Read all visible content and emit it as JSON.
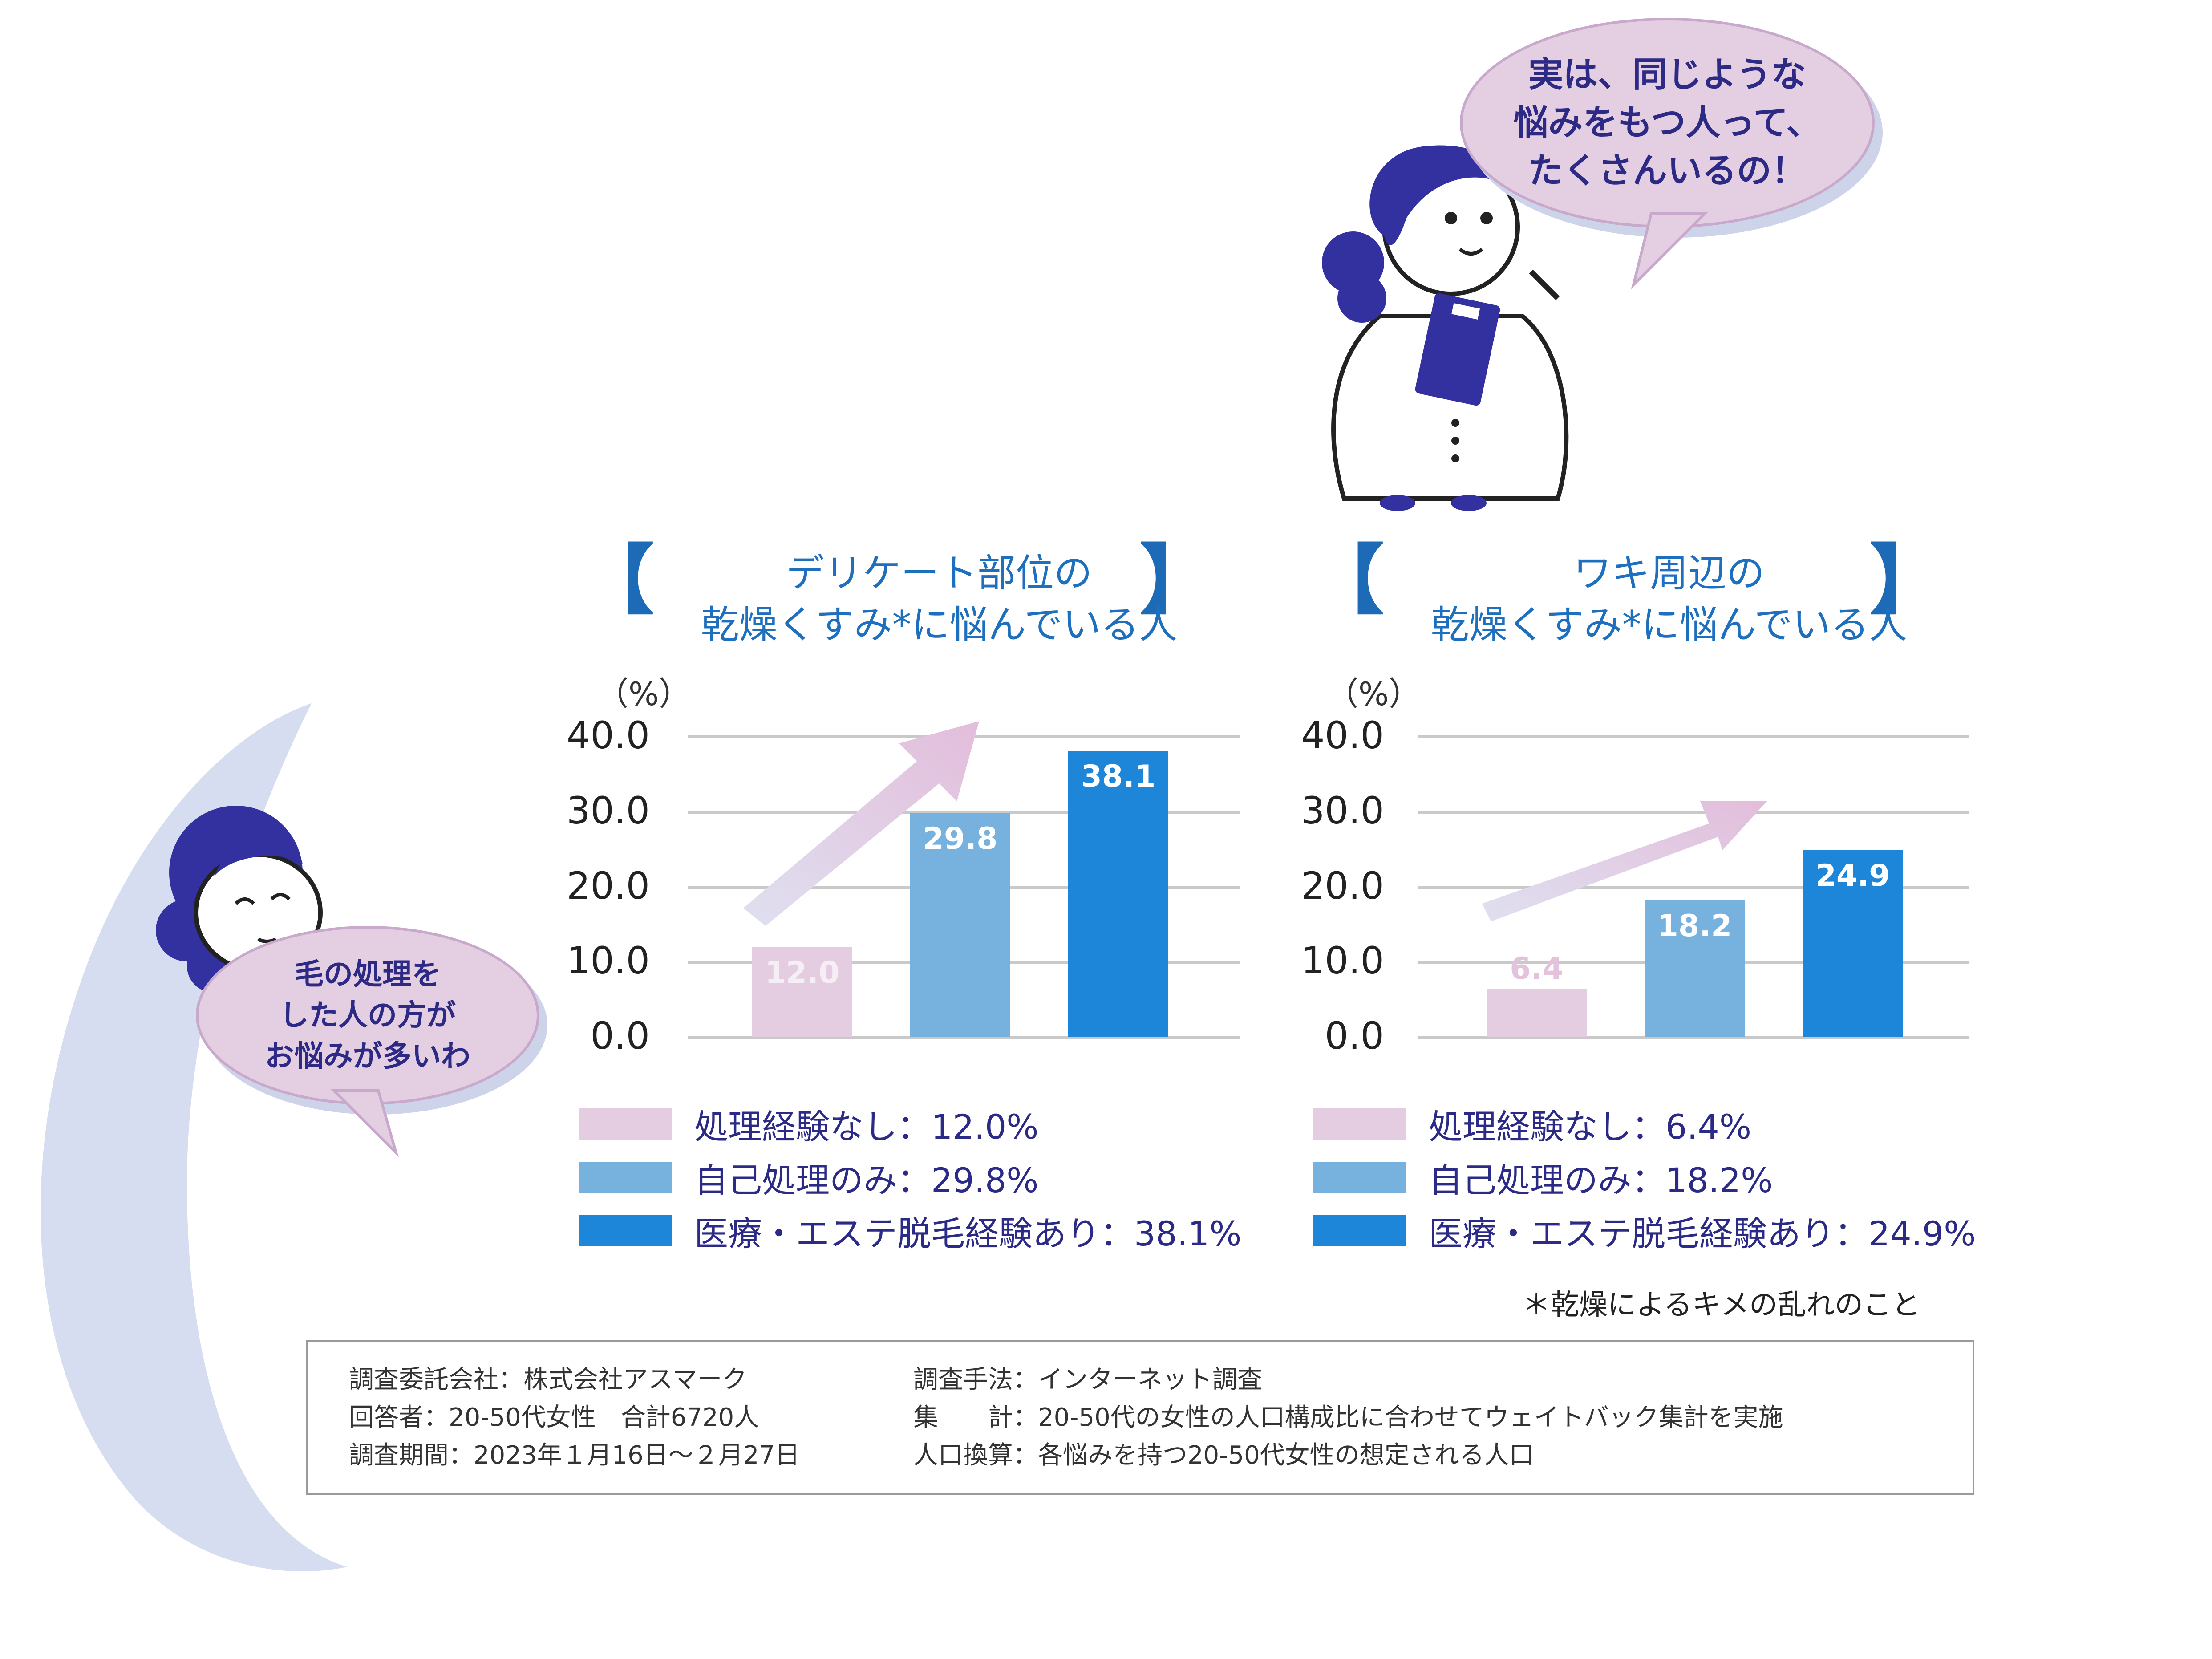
{
  "speech_top": "実は、同じような\n悩みをもつ人って、\nたくさんいるの！",
  "speech_left": "毛の処理を\nした人の方が\nお悩みが多いわ",
  "colors": {
    "none": "#e5cde1",
    "self": "#77b1de",
    "medical": "#1d86d9",
    "title": "#1f6fbf",
    "bracket": "#1d6bb7"
  },
  "legend_labels_left": [
    "処理経験なし：12.0%",
    "自己処理のみ：29.8%",
    "医療・エステ脱毛経験あり：38.1%"
  ],
  "legend_labels_right": [
    "処理経験なし：6.4%",
    "自己処理のみ：18.2%",
    "医療・エステ脱毛経験あり：24.9%"
  ],
  "chart_data": [
    {
      "type": "bar",
      "title": "デリケート部位の\n乾燥くすみ*に悩んでいる人",
      "ylabel": "（%）",
      "ylim": [
        0,
        40
      ],
      "yticks": [
        "40.0",
        "30.0",
        "20.0",
        "10.0",
        "0.0"
      ],
      "categories": [
        "処理経験なし",
        "自己処理のみ",
        "医療・エステ脱毛経験あり"
      ],
      "values": [
        12.0,
        29.8,
        38.1
      ],
      "value_labels": [
        "12.0",
        "29.8",
        "38.1"
      ],
      "grid": true
    },
    {
      "type": "bar",
      "title": "ワキ周辺の\n乾燥くすみ*に悩んでいる人",
      "ylabel": "（%）",
      "ylim": [
        0,
        40
      ],
      "yticks": [
        "40.0",
        "30.0",
        "20.0",
        "10.0",
        "0.0"
      ],
      "categories": [
        "処理経験なし",
        "自己処理のみ",
        "医療・エステ脱毛経験あり"
      ],
      "values": [
        6.4,
        18.2,
        24.9
      ],
      "value_labels": [
        "6.4",
        "18.2",
        "24.9"
      ],
      "grid": true
    }
  ],
  "footnote": "＊乾燥によるキメの乱れのこと",
  "survey": {
    "company": "調査委託会社：株式会社アスマーク",
    "respondents": "回答者：20-50代女性　合計6720人",
    "period": "調査期間：2023年１月16日〜２月27日",
    "method": "調査手法：インターネット調査",
    "aggregation": "集　　計：20-50代の女性の人口構成比に合わせてウェイトバック集計を実施",
    "population": "人口換算：各悩みを持つ20-50代女性の想定される人口"
  }
}
